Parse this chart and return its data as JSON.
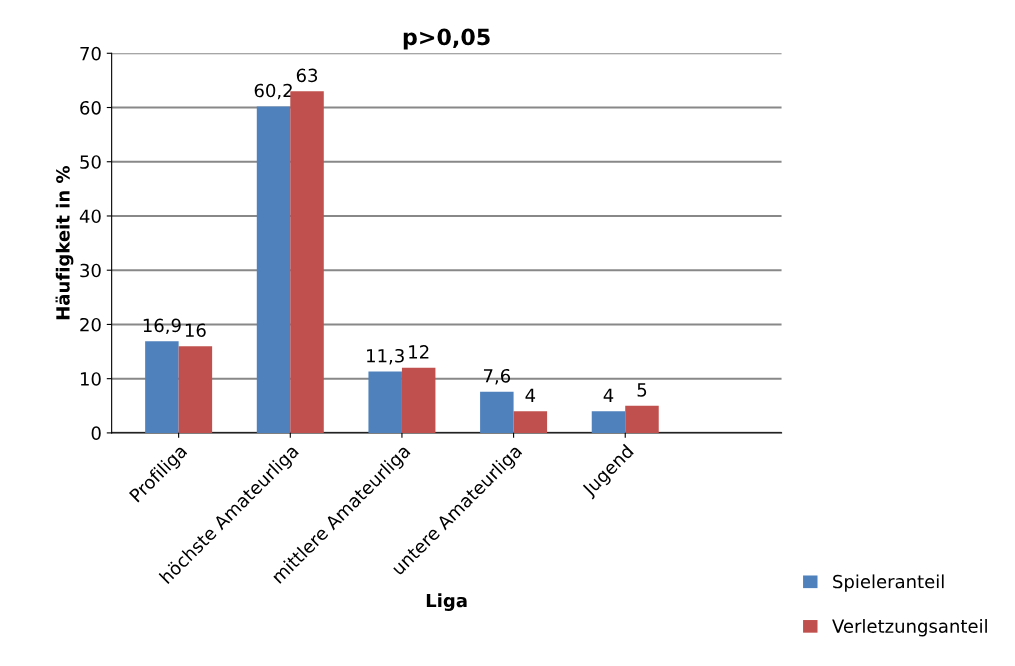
{
  "chart_data": {
    "type": "bar",
    "title": "p>0,05",
    "xlabel": "Liga",
    "ylabel": "Häufigkeit in %",
    "categories": [
      "Profiliga",
      "höchste Amateurliga",
      "mittlere Amateurliga",
      "untere Amateurliga",
      "Jugend"
    ],
    "series": [
      {
        "name": "Spieleranteil",
        "color": "#4f81bd",
        "values": [
          16.9,
          60.2,
          11.3,
          7.6,
          4
        ],
        "value_labels": [
          "16,9",
          "60,2",
          "11,3",
          "7,6",
          "4"
        ]
      },
      {
        "name": "Verletzungsanteil",
        "color": "#c0504d",
        "values": [
          16,
          63,
          12,
          4,
          5
        ],
        "value_labels": [
          "16",
          "63",
          "12",
          "4",
          "5"
        ]
      }
    ],
    "ylim": [
      0,
      70
    ],
    "yticks": [
      0,
      10,
      20,
      30,
      40,
      50,
      60,
      70
    ],
    "grid": "y",
    "legend": "bottom right"
  }
}
